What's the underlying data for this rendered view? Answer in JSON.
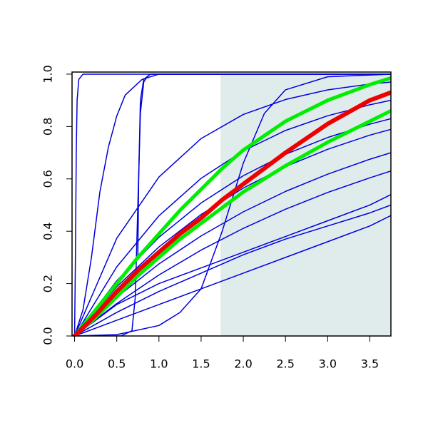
{
  "chart_data": {
    "type": "line",
    "xlim": [
      -0.03,
      3.75
    ],
    "ylim": [
      0,
      1.008
    ],
    "xticks": [
      {
        "value": 0,
        "label": "0.0"
      },
      {
        "value": 0.5,
        "label": "0.5"
      },
      {
        "value": 1,
        "label": "1.0"
      },
      {
        "value": 1.5,
        "label": "1.5"
      },
      {
        "value": 2,
        "label": "2.0"
      },
      {
        "value": 2.5,
        "label": "2.5"
      },
      {
        "value": 3,
        "label": "3.0"
      },
      {
        "value": 3.5,
        "label": "3.5"
      }
    ],
    "yticks": [
      {
        "value": 0,
        "label": "0.0"
      },
      {
        "value": 0.2,
        "label": "0.2"
      },
      {
        "value": 0.4,
        "label": "0.4"
      },
      {
        "value": 0.6,
        "label": "0.6"
      },
      {
        "value": 0.8,
        "label": "0.8"
      },
      {
        "value": 1,
        "label": "1.0"
      }
    ],
    "shaded_region": {
      "xmin": 1.73,
      "xmax": 3.75,
      "ymin": 0,
      "ymax": 1,
      "color": "#e0ecec"
    },
    "series": [
      {
        "color": "#0000dd",
        "line_width": 1.5,
        "x": [
          0,
          0.01,
          0.02,
          0.03,
          0.05,
          0.1,
          3.75
        ],
        "values": [
          0,
          0.3,
          0.7,
          0.9,
          0.98,
          1,
          1
        ]
      },
      {
        "color": "#0000dd",
        "line_width": 1.5,
        "x": [
          0,
          0.1,
          0.2,
          0.3,
          0.4,
          0.5,
          0.6,
          0.8,
          1.0,
          3.75
        ],
        "values": [
          0,
          0.1,
          0.3,
          0.55,
          0.72,
          0.84,
          0.92,
          0.98,
          1,
          1
        ]
      },
      {
        "color": "#0000dd",
        "line_width": 1.5,
        "x": [
          0,
          0.55,
          0.68,
          0.72,
          0.75,
          0.78,
          0.82,
          0.86,
          0.9,
          3.75
        ],
        "values": [
          0,
          0,
          0.02,
          0.15,
          0.5,
          0.85,
          0.97,
          0.99,
          1,
          1
        ]
      },
      {
        "color": "#0000dd",
        "line_width": 1.5,
        "x": [
          0,
          0.75,
          0.76,
          0.78,
          0.82,
          0.9,
          3.75
        ],
        "values": [
          0,
          0.3,
          0.6,
          0.9,
          0.98,
          1,
          1
        ]
      },
      {
        "color": "#0000dd",
        "line_width": 1.5,
        "x": [
          0,
          0.5,
          1.0,
          1.25,
          1.5,
          1.75,
          2.0,
          2.25,
          2.5,
          3.0,
          3.75
        ],
        "values": [
          0,
          0.005,
          0.04,
          0.09,
          0.18,
          0.4,
          0.66,
          0.85,
          0.94,
          0.99,
          1
        ]
      },
      {
        "color": "#0000dd",
        "line_width": 1.5,
        "x": [
          0,
          0.5,
          1,
          1.5,
          2,
          2.5,
          3,
          3.5,
          3.75
        ],
        "values": [
          0,
          0.373,
          0.607,
          0.754,
          0.846,
          0.903,
          0.94,
          0.962,
          0.97
        ]
      },
      {
        "color": "#0000dd",
        "line_width": 1.5,
        "x": [
          0,
          0.5,
          1,
          1.5,
          2,
          2.5,
          3,
          3.5,
          3.75
        ],
        "values": [
          0,
          0.264,
          0.459,
          0.602,
          0.707,
          0.785,
          0.841,
          0.883,
          0.9
        ]
      },
      {
        "color": "#0000dd",
        "line_width": 1.5,
        "x": [
          0,
          0.5,
          1,
          1.5,
          2,
          2.5,
          3,
          3.5,
          3.75
        ],
        "values": [
          0,
          0.211,
          0.377,
          0.508,
          0.612,
          0.694,
          0.758,
          0.809,
          0.83
        ]
      },
      {
        "color": "#0000dd",
        "line_width": 1.5,
        "x": [
          0,
          0.5,
          1,
          1.5,
          2,
          2.5,
          3,
          3.5,
          3.75
        ],
        "values": [
          0,
          0.188,
          0.34,
          0.464,
          0.565,
          0.647,
          0.713,
          0.767,
          0.789
        ]
      },
      {
        "color": "#0000dd",
        "line_width": 1.5,
        "x": [
          0,
          0.5,
          1,
          1.5,
          2,
          2.5,
          3,
          3.5,
          3.75
        ],
        "values": [
          0,
          0.148,
          0.275,
          0.382,
          0.474,
          0.552,
          0.618,
          0.675,
          0.7
        ]
      },
      {
        "color": "#0000dd",
        "line_width": 1.5,
        "x": [
          0,
          0.5,
          1,
          1.5,
          2,
          2.5,
          3,
          3.5,
          3.75
        ],
        "values": [
          0,
          0.124,
          0.233,
          0.328,
          0.411,
          0.484,
          0.548,
          0.604,
          0.63
        ]
      },
      {
        "color": "#0000dd",
        "line_width": 1.5,
        "x": [
          0,
          0.5,
          1,
          1.5,
          2,
          2.5,
          3,
          3.5,
          3.75
        ],
        "values": [
          0,
          0.12,
          0.2,
          0.26,
          0.32,
          0.38,
          0.44,
          0.5,
          0.54
        ]
      },
      {
        "color": "#0000dd",
        "line_width": 1.5,
        "x": [
          0,
          0.5,
          1,
          1.5,
          2,
          2.5,
          3,
          3.5,
          3.75
        ],
        "values": [
          0,
          0.09,
          0.17,
          0.24,
          0.31,
          0.37,
          0.42,
          0.47,
          0.5
        ]
      },
      {
        "color": "#0000dd",
        "line_width": 1.5,
        "x": [
          0,
          0.5,
          1,
          1.5,
          2,
          2.5,
          3,
          3.5,
          3.75
        ],
        "values": [
          0,
          0.06,
          0.12,
          0.18,
          0.24,
          0.3,
          0.36,
          0.42,
          0.46
        ]
      },
      {
        "color": "#00ee00",
        "line_width": 5,
        "x": [
          0,
          0.25,
          0.5,
          0.75,
          1,
          1.25,
          1.5,
          1.75,
          2,
          2.5,
          3,
          3.5,
          3.75
        ],
        "values": [
          0,
          0.1,
          0.2,
          0.3,
          0.39,
          0.48,
          0.56,
          0.64,
          0.71,
          0.82,
          0.9,
          0.96,
          0.985
        ]
      },
      {
        "color": "#00ee00",
        "line_width": 5,
        "x": [
          0,
          0.25,
          0.5,
          0.75,
          1,
          1.25,
          1.5,
          1.75,
          2,
          2.5,
          3,
          3.5,
          3.75
        ],
        "values": [
          0,
          0.07,
          0.15,
          0.23,
          0.3,
          0.37,
          0.43,
          0.49,
          0.55,
          0.65,
          0.74,
          0.82,
          0.86
        ]
      },
      {
        "color": "#ee0000",
        "line_width": 6,
        "x": [
          0,
          0.25,
          0.5,
          0.75,
          1,
          1.25,
          1.5,
          1.75,
          2,
          2.5,
          3,
          3.5,
          3.75
        ],
        "values": [
          0,
          0.08,
          0.17,
          0.25,
          0.32,
          0.39,
          0.45,
          0.52,
          0.58,
          0.7,
          0.81,
          0.9,
          0.93
        ]
      }
    ]
  }
}
